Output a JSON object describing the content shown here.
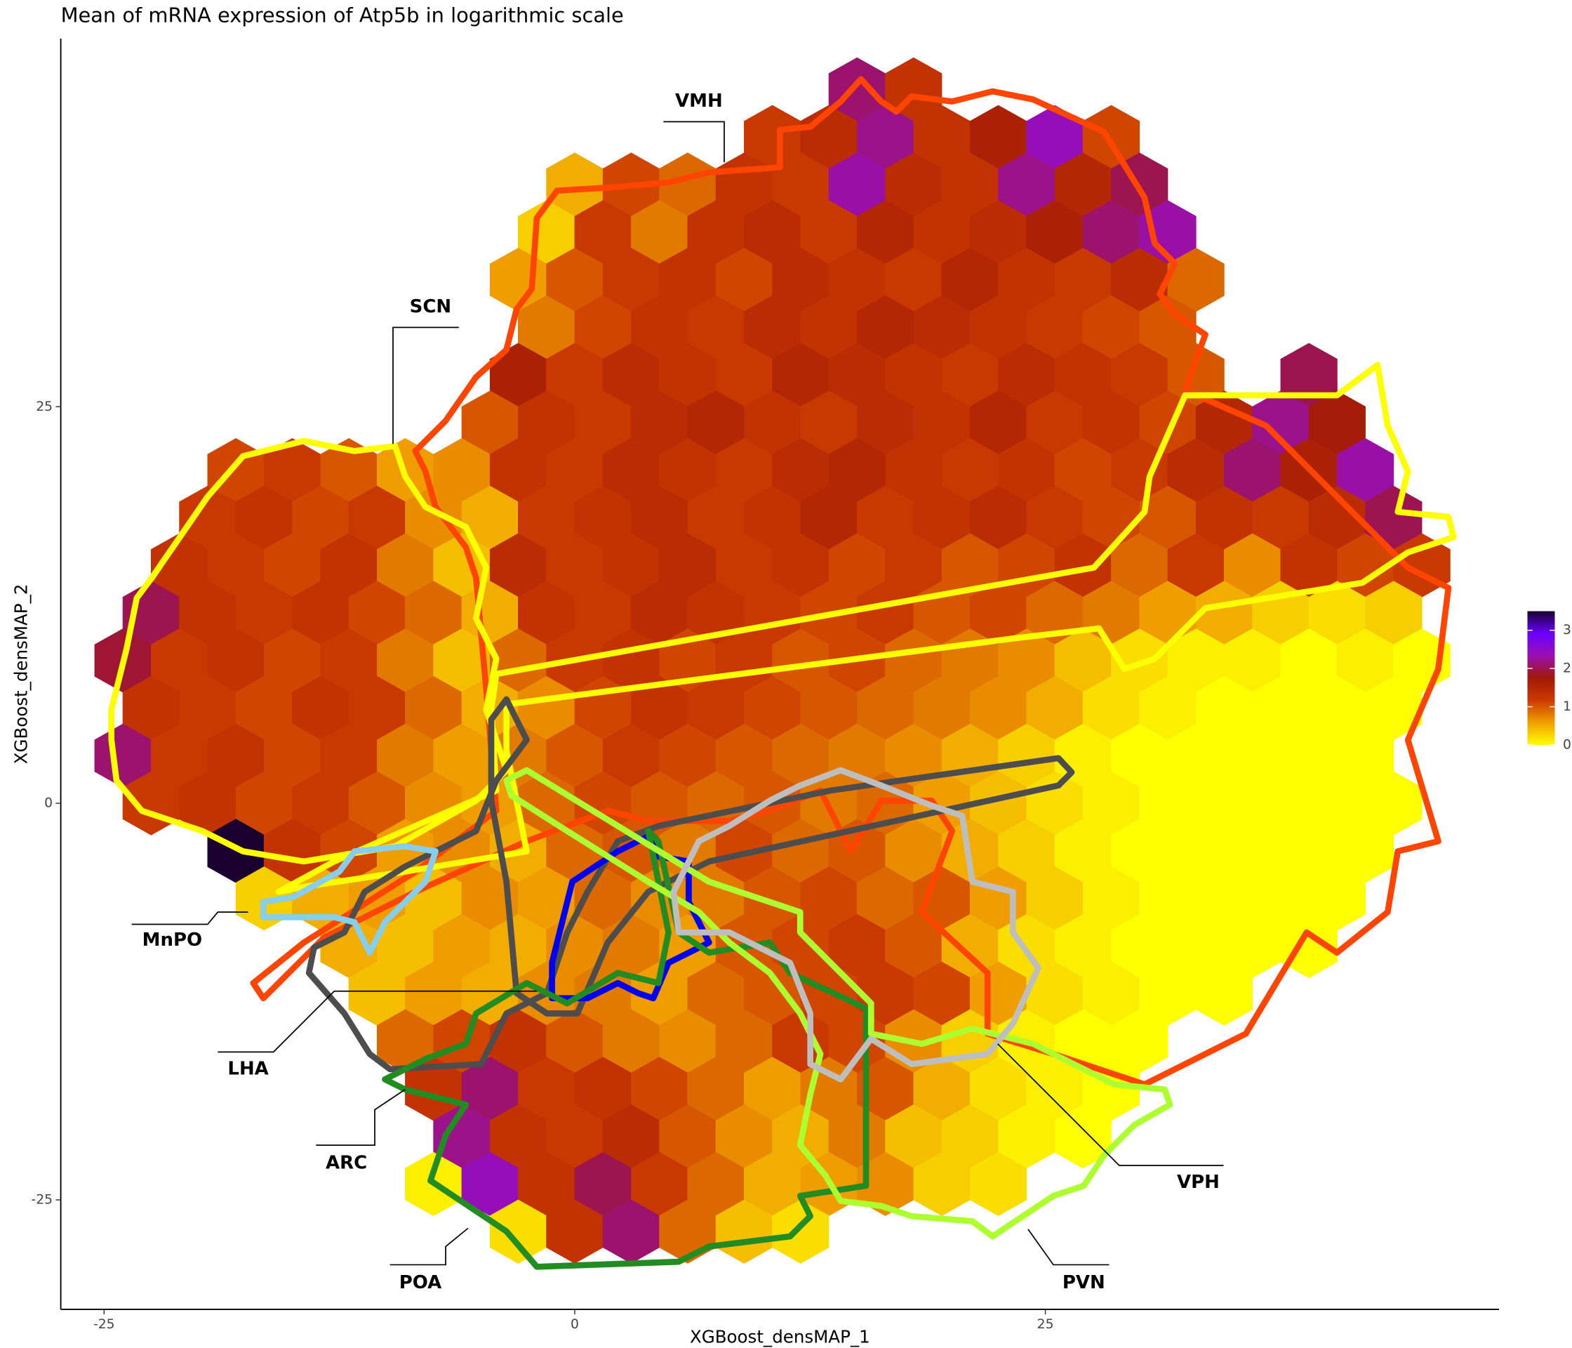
{
  "chart_data": {
    "type": "hexbin",
    "title": "Mean of mRNA expression of Atp5b in logarithmic scale",
    "x_label": "XGBoost_densMAP_1",
    "y_label": "XGBoost_densMAP_2",
    "xlim": [
      -27.3,
      49.1
    ],
    "ylim": [
      -31.9,
      48.2
    ],
    "xticks": [
      -25,
      0,
      25
    ],
    "yticks": [
      -25,
      0,
      25
    ],
    "x": [
      -24,
      -21,
      -18,
      -15,
      -12,
      -9,
      -6,
      -3,
      0,
      3,
      6,
      9,
      12,
      15,
      18,
      21,
      24,
      27,
      30,
      33,
      36,
      39,
      42,
      45
    ],
    "y": [
      45,
      42,
      39,
      36,
      33,
      30,
      27,
      24,
      21,
      18,
      15,
      12,
      9,
      6,
      3,
      0,
      -3,
      -6,
      -9,
      -12,
      -15,
      -18,
      -21,
      -24,
      -27
    ],
    "values": [
      [
        null,
        null,
        null,
        null,
        null,
        null,
        null,
        null,
        null,
        null,
        null,
        null,
        null,
        2.1,
        1.3,
        null,
        null,
        null,
        null,
        null,
        null,
        null,
        null,
        null
      ],
      [
        null,
        null,
        null,
        null,
        null,
        null,
        null,
        null,
        null,
        null,
        null,
        1.2,
        1.4,
        2.2,
        1.3,
        1.6,
        2.4,
        1.1,
        null,
        null,
        null,
        null,
        null,
        null
      ],
      [
        null,
        null,
        null,
        null,
        null,
        null,
        null,
        null,
        0.5,
        1.1,
        0.9,
        1.3,
        1.2,
        2.3,
        1.4,
        1.3,
        2.2,
        1.5,
        2.0,
        null,
        null,
        null,
        null,
        null
      ],
      [
        null,
        null,
        null,
        null,
        null,
        null,
        null,
        0.3,
        1.2,
        0.8,
        1.3,
        1.4,
        1.2,
        1.5,
        1.3,
        1.4,
        1.6,
        2.1,
        2.3,
        null,
        null,
        null,
        null,
        null
      ],
      [
        null,
        null,
        null,
        null,
        null,
        null,
        null,
        0.6,
        1.0,
        1.2,
        1.3,
        1.1,
        1.4,
        1.3,
        1.2,
        1.5,
        1.3,
        1.2,
        1.4,
        0.9,
        null,
        null,
        null,
        null
      ],
      [
        null,
        null,
        null,
        null,
        null,
        null,
        null,
        0.8,
        1.1,
        1.3,
        1.2,
        1.4,
        1.3,
        1.5,
        1.4,
        1.3,
        1.2,
        1.1,
        1.0,
        null,
        null,
        null,
        null,
        null
      ],
      [
        null,
        null,
        null,
        null,
        null,
        null,
        null,
        1.6,
        1.2,
        1.4,
        1.3,
        1.2,
        1.5,
        1.4,
        1.3,
        1.2,
        1.4,
        1.3,
        1.2,
        1.0,
        null,
        2.0,
        null,
        null
      ],
      [
        null,
        null,
        null,
        null,
        null,
        null,
        1.0,
        1.3,
        1.2,
        1.4,
        1.5,
        1.3,
        1.2,
        1.4,
        1.3,
        1.5,
        1.2,
        1.3,
        1.1,
        1.5,
        2.2,
        1.7,
        null,
        null
      ],
      [
        null,
        null,
        1.1,
        1.2,
        1.0,
        0.6,
        0.7,
        1.3,
        1.2,
        1.4,
        1.3,
        1.2,
        1.4,
        1.5,
        1.3,
        1.2,
        1.3,
        1.1,
        1.2,
        1.4,
        2.1,
        1.6,
        2.3,
        null
      ],
      [
        null,
        1.2,
        1.3,
        1.1,
        1.2,
        0.7,
        0.5,
        1.2,
        1.3,
        1.4,
        1.2,
        1.3,
        1.5,
        1.2,
        1.3,
        1.4,
        1.2,
        1.1,
        1.0,
        1.3,
        1.2,
        1.4,
        2.0,
        null
      ],
      [
        null,
        1.3,
        1.2,
        1.1,
        1.3,
        0.8,
        0.4,
        1.4,
        1.2,
        1.3,
        1.4,
        1.2,
        1.3,
        1.1,
        1.2,
        1.0,
        1.1,
        1.3,
        0.9,
        1.2,
        0.7,
        1.3,
        1.1,
        1.2
      ],
      [
        2.0,
        1.3,
        1.2,
        1.3,
        1.1,
        0.9,
        0.5,
        1.3,
        1.2,
        1.4,
        1.3,
        1.2,
        1.1,
        1.2,
        1.0,
        1.1,
        0.9,
        0.8,
        0.6,
        0.5,
        0.3,
        0.2,
        0.3,
        null
      ],
      [
        1.9,
        1.2,
        1.3,
        1.1,
        1.2,
        0.8,
        0.4,
        0.9,
        1.2,
        1.3,
        1.1,
        1.2,
        1.0,
        1.1,
        0.9,
        0.8,
        0.7,
        0.4,
        0.2,
        0.1,
        0.1,
        0,
        0.1,
        0
      ],
      [
        1.3,
        1.2,
        1.1,
        1.3,
        1.2,
        0.9,
        0.5,
        0.7,
        1.1,
        1.3,
        1.2,
        1.1,
        1.0,
        0.9,
        0.8,
        0.7,
        0.5,
        0.2,
        0.1,
        0,
        0,
        0,
        0,
        null
      ],
      [
        2.1,
        1.2,
        1.3,
        1.1,
        1.2,
        0.8,
        0.6,
        0.8,
        1.0,
        1.2,
        1.1,
        1.0,
        0.9,
        0.8,
        0.7,
        0.5,
        0.3,
        0.1,
        0,
        0,
        0,
        0,
        0,
        null
      ],
      [
        1.2,
        1.3,
        1.1,
        1.2,
        1.0,
        0.7,
        0.6,
        0.9,
        1.1,
        1.0,
        0.9,
        1.0,
        0.8,
        0.9,
        0.6,
        0.4,
        0.2,
        0.1,
        0,
        0,
        0,
        0,
        0,
        null
      ],
      [
        null,
        null,
        3.5,
        1.3,
        1.1,
        0.6,
        0.7,
        0.5,
        0.9,
        1.0,
        0.8,
        1.1,
        0.9,
        1.0,
        0.7,
        0.5,
        0.3,
        0.1,
        0,
        0,
        0,
        0,
        0,
        null
      ],
      [
        null,
        null,
        0.3,
        0.5,
        0.6,
        0.4,
        0.7,
        0.6,
        0.9,
        0.7,
        0.8,
        1.0,
        1.1,
        0.9,
        1.0,
        0.6,
        0.3,
        0.1,
        0,
        0,
        0,
        0,
        null,
        null
      ],
      [
        null,
        null,
        null,
        null,
        0.5,
        0.4,
        0.6,
        0.5,
        0.7,
        0.8,
        0.6,
        1.0,
        1.1,
        1.2,
        1.0,
        0.5,
        0.2,
        0.1,
        0,
        0,
        0,
        0,
        null,
        null
      ],
      [
        null,
        null,
        null,
        null,
        0.4,
        0.6,
        0.5,
        0.7,
        0.8,
        0.6,
        0.9,
        1.0,
        1.1,
        1.2,
        1.1,
        0.6,
        0.2,
        0.1,
        0,
        0,
        null,
        null,
        null,
        null
      ],
      [
        null,
        null,
        null,
        null,
        null,
        0.9,
        1.1,
        1.3,
        1.0,
        0.8,
        0.7,
        0.9,
        1.2,
        1.1,
        0.7,
        0.3,
        0.1,
        0,
        0,
        null,
        null,
        null,
        null,
        null
      ],
      [
        null,
        null,
        null,
        null,
        null,
        1.3,
        2.1,
        1.2,
        1.3,
        1.1,
        0.9,
        0.6,
        0.8,
        1.0,
        0.5,
        0.2,
        0.1,
        0,
        null,
        null,
        null,
        null,
        null,
        null
      ],
      [
        null,
        null,
        null,
        null,
        null,
        null,
        2.2,
        1.3,
        1.2,
        1.4,
        1.0,
        0.7,
        0.5,
        0.8,
        0.4,
        0.3,
        0.1,
        0,
        null,
        null,
        null,
        null,
        null,
        null
      ],
      [
        null,
        null,
        null,
        null,
        null,
        0.1,
        2.4,
        1.3,
        2.0,
        1.2,
        0.9,
        0.5,
        0.6,
        0.7,
        0.3,
        0.2,
        null,
        null,
        null,
        null,
        null,
        null,
        null,
        null
      ],
      [
        null,
        null,
        null,
        null,
        null,
        null,
        null,
        0.2,
        1.3,
        2.1,
        0.9,
        0.4,
        0.2,
        null,
        null,
        null,
        null,
        null,
        null,
        null,
        null,
        null,
        null,
        null
      ]
    ],
    "colorbar": {
      "lim": [
        0,
        3.5
      ],
      "ticks": [
        0,
        1,
        2,
        3
      ],
      "colors": [
        "#ffff00",
        "#f0a000",
        "#cc3a00",
        "#a01808",
        "#9a10b0",
        "#6a00ff",
        "#1a0030"
      ]
    },
    "annotations": [
      "VMH",
      "SCN",
      "MnPO",
      "LHA",
      "ARC",
      "POA",
      "PVN",
      "VPH"
    ]
  }
}
